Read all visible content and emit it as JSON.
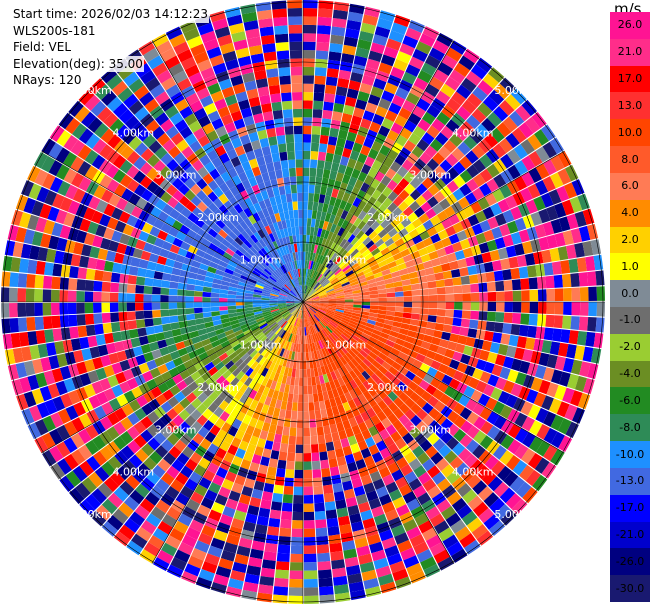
{
  "header": {
    "start_time": "Start time: 2026/02/03 14:12:23",
    "station": "WLS200s-181",
    "field": "Field: VEL",
    "elevation": "Elevation(deg): 35.00",
    "nrays": "NRays: 120"
  },
  "colorbar": {
    "unit": "m/s",
    "labels": [
      "26.0",
      "21.0",
      "17.0",
      "13.0",
      "10.0",
      "8.0",
      "6.0",
      "4.0",
      "2.0",
      "1.0",
      "0.0",
      "-1.0",
      "-2.0",
      "-4.0",
      "-6.0",
      "-8.0",
      "-10.0",
      "-13.0",
      "-17.0",
      "-21.0",
      "-26.0",
      "-30.0"
    ],
    "colors": [
      "#ff1493",
      "#ff2d8a",
      "#ff0000",
      "#ff3030",
      "#ff4500",
      "#ff5a2a",
      "#ff7b55",
      "#ff8c00",
      "#ffd000",
      "#ffff00",
      "#7f8b96",
      "#6e6e6e",
      "#9acd32",
      "#6b8e23",
      "#228b22",
      "#2e8b57",
      "#1e90ff",
      "#4169e1",
      "#0000ff",
      "#0000cd",
      "#000080",
      "#191970"
    ]
  },
  "chart_data": {
    "type": "heatmap",
    "title": "",
    "field": "VEL",
    "unit": "m/s",
    "nrays": 120,
    "elevation_deg": 35.0,
    "range_rings_km": [
      1.0,
      2.0,
      3.0,
      4.0,
      5.0
    ],
    "ring_labels": [
      "1.00km",
      "2.00km",
      "3.00km",
      "4.00km",
      "5.00km"
    ],
    "max_range_km": 5.6,
    "vmin": -30.0,
    "vmax": 30.0
  }
}
